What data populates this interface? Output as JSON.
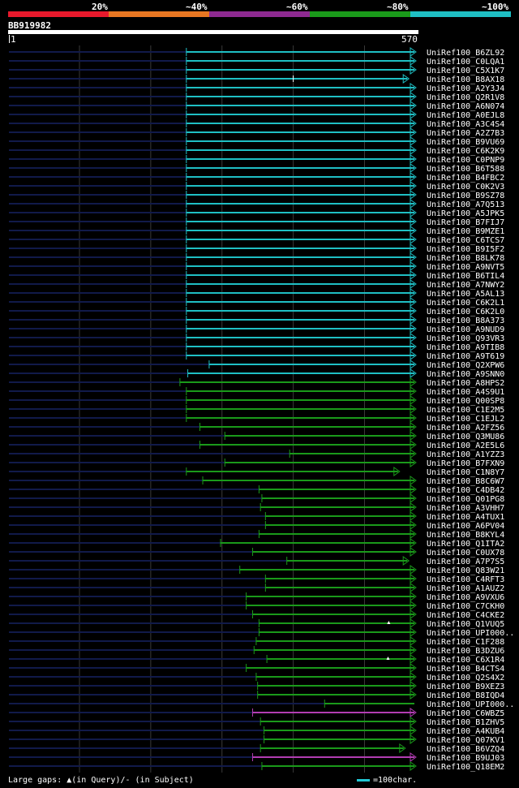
{
  "legend": {
    "colors": [
      "#e8192c",
      "#e87722",
      "#8e2a91",
      "#1a9a1a",
      "#1fbfc4"
    ],
    "labels": [
      "20%",
      "~40%",
      "~60%",
      "~80%",
      "~100%"
    ]
  },
  "query": {
    "id": "BB919982",
    "start": "1",
    "end": "570"
  },
  "hits": [
    {
      "label": "UniRef100_B6ZL92",
      "start": 250,
      "color": "#1fbfc4",
      "end": 570,
      "arrow": true
    },
    {
      "label": "UniRef100_C0LQA1",
      "start": 250,
      "color": "#1fbfc4",
      "end": 570,
      "arrow": true
    },
    {
      "label": "UniRef100_C5X1K7",
      "start": 250,
      "color": "#1fbfc4",
      "end": 570,
      "arrow": true
    },
    {
      "label": "UniRef100_B8AX18",
      "start": 250,
      "color": "#1fbfc4",
      "end": 560,
      "arrow": true,
      "gap": 400
    },
    {
      "label": "UniRef100_A2Y3J4",
      "start": 250,
      "color": "#1fbfc4",
      "end": 570,
      "arrow": true
    },
    {
      "label": "UniRef100_Q2R1V8",
      "start": 250,
      "color": "#1fbfc4",
      "end": 570,
      "arrow": true
    },
    {
      "label": "UniRef100_A6N074",
      "start": 250,
      "color": "#1fbfc4",
      "end": 570,
      "arrow": true
    },
    {
      "label": "UniRef100_A0EJL8",
      "start": 250,
      "color": "#1fbfc4",
      "end": 570,
      "arrow": true
    },
    {
      "label": "UniRef100_A3C4S4",
      "start": 250,
      "color": "#1fbfc4",
      "end": 570,
      "arrow": true
    },
    {
      "label": "UniRef100_A2Z7B3",
      "start": 250,
      "color": "#1fbfc4",
      "end": 570,
      "arrow": true
    },
    {
      "label": "UniRef100_B9VU69",
      "start": 250,
      "color": "#1fbfc4",
      "end": 570,
      "arrow": true
    },
    {
      "label": "UniRef100_C6K2K9",
      "start": 250,
      "color": "#1fbfc4",
      "end": 570,
      "arrow": true
    },
    {
      "label": "UniRef100_C0PNP9",
      "start": 250,
      "color": "#1fbfc4",
      "end": 570,
      "arrow": true
    },
    {
      "label": "UniRef100_B6T588",
      "start": 250,
      "color": "#1fbfc4",
      "end": 570,
      "arrow": true
    },
    {
      "label": "UniRef100_B4FBC2",
      "start": 250,
      "color": "#1fbfc4",
      "end": 570,
      "arrow": true
    },
    {
      "label": "UniRef100_C0K2V3",
      "start": 250,
      "color": "#1fbfc4",
      "end": 570,
      "arrow": true
    },
    {
      "label": "UniRef100_B9SZ78",
      "start": 250,
      "color": "#1fbfc4",
      "end": 570,
      "arrow": true
    },
    {
      "label": "UniRef100_A7Q513",
      "start": 250,
      "color": "#1fbfc4",
      "end": 570,
      "arrow": true
    },
    {
      "label": "UniRef100_A5JPK5",
      "start": 250,
      "color": "#1fbfc4",
      "end": 570,
      "arrow": true
    },
    {
      "label": "UniRef100_B7FIJ7",
      "start": 250,
      "color": "#1fbfc4",
      "end": 570,
      "arrow": true
    },
    {
      "label": "UniRef100_B9MZE1",
      "start": 250,
      "color": "#1fbfc4",
      "end": 570,
      "arrow": true
    },
    {
      "label": "UniRef100_C6TCS7",
      "start": 250,
      "color": "#1fbfc4",
      "end": 570,
      "arrow": true
    },
    {
      "label": "UniRef100_B9I5F2",
      "start": 250,
      "color": "#1fbfc4",
      "end": 570,
      "arrow": true
    },
    {
      "label": "UniRef100_B8LK78",
      "start": 250,
      "color": "#1fbfc4",
      "end": 570,
      "arrow": true
    },
    {
      "label": "UniRef100_A9NVT5",
      "start": 250,
      "color": "#1fbfc4",
      "end": 570,
      "arrow": true
    },
    {
      "label": "UniRef100_B6TIL4",
      "start": 250,
      "color": "#1fbfc4",
      "end": 570,
      "arrow": true
    },
    {
      "label": "UniRef100_A7NWY2",
      "start": 250,
      "color": "#1fbfc4",
      "end": 570,
      "arrow": true
    },
    {
      "label": "UniRef100_A5AL13",
      "start": 250,
      "color": "#1fbfc4",
      "end": 570,
      "arrow": true
    },
    {
      "label": "UniRef100_C6K2L1",
      "start": 250,
      "color": "#1fbfc4",
      "end": 570,
      "arrow": true
    },
    {
      "label": "UniRef100_C6K2L0",
      "start": 250,
      "color": "#1fbfc4",
      "end": 570,
      "arrow": true
    },
    {
      "label": "UniRef100_B8A373",
      "start": 250,
      "color": "#1fbfc4",
      "end": 570,
      "arrow": true
    },
    {
      "label": "UniRef100_A9NUD9",
      "start": 250,
      "color": "#1fbfc4",
      "end": 570,
      "arrow": true
    },
    {
      "label": "UniRef100_Q93VR3",
      "start": 250,
      "color": "#1fbfc4",
      "end": 570,
      "arrow": true
    },
    {
      "label": "UniRef100_A9TIB8",
      "start": 250,
      "color": "#1fbfc4",
      "end": 570,
      "arrow": true
    },
    {
      "label": "UniRef100_A9T619",
      "start": 250,
      "color": "#1fbfc4",
      "end": 570,
      "arrow": true
    },
    {
      "label": "UniRef100_Q2XPW6",
      "start": 282,
      "color": "#1fbfc4",
      "end": 570,
      "arrow": true
    },
    {
      "label": "UniRef100_A9SNN0",
      "start": 252,
      "color": "#1fbfc4",
      "end": 570,
      "arrow": true
    },
    {
      "label": "UniRef100_A8HPS2",
      "start": 241,
      "color": "#1a9a1a",
      "end": 570,
      "arrow": true
    },
    {
      "label": "UniRef100_A4S9U1",
      "start": 250,
      "color": "#1a9a1a",
      "end": 570,
      "arrow": true
    },
    {
      "label": "UniRef100_Q00SP8",
      "start": 250,
      "color": "#1a9a1a",
      "end": 570,
      "arrow": true
    },
    {
      "label": "UniRef100_C1E2M5",
      "start": 250,
      "color": "#1a9a1a",
      "end": 570,
      "arrow": true
    },
    {
      "label": "UniRef100_C1EJL2",
      "start": 250,
      "color": "#1a9a1a",
      "end": 570,
      "arrow": true
    },
    {
      "label": "UniRef100_A2FZ56",
      "start": 269,
      "color": "#1a9a1a",
      "end": 570,
      "arrow": true
    },
    {
      "label": "UniRef100_Q3MU86",
      "start": 304,
      "color": "#1a9a1a",
      "end": 570,
      "arrow": true
    },
    {
      "label": "UniRef100_A2E5L6",
      "start": 269,
      "color": "#1a9a1a",
      "end": 570,
      "arrow": true
    },
    {
      "label": "UniRef100_A1YZZ3",
      "start": 395,
      "color": "#1a9a1a",
      "end": 570,
      "arrow": true
    },
    {
      "label": "UniRef100_B7FXN9",
      "start": 304,
      "color": "#1a9a1a",
      "end": 570,
      "arrow": true
    },
    {
      "label": "UniRef100_C1N8Y7",
      "start": 250,
      "color": "#1a9a1a",
      "end": 547,
      "arrow": true
    },
    {
      "label": "UniRef100_B8C6W7",
      "start": 273,
      "color": "#1a9a1a",
      "end": 570,
      "arrow": true
    },
    {
      "label": "UniRef100_C4DB42",
      "start": 352,
      "color": "#1a9a1a",
      "end": 570,
      "arrow": true
    },
    {
      "label": "UniRef100_Q01PG8",
      "start": 356,
      "color": "#1a9a1a",
      "end": 570,
      "arrow": true
    },
    {
      "label": "UniRef100_A3VHH7",
      "start": 354,
      "color": "#1a9a1a",
      "end": 570,
      "arrow": true
    },
    {
      "label": "UniRef100_A4TUX1",
      "start": 361,
      "color": "#1a9a1a",
      "end": 570,
      "arrow": true
    },
    {
      "label": "UniRef100_A6PV04",
      "start": 361,
      "color": "#1a9a1a",
      "end": 570,
      "arrow": true
    },
    {
      "label": "UniRef100_B8KYL4",
      "start": 352,
      "color": "#1a9a1a",
      "end": 570,
      "arrow": true
    },
    {
      "label": "UniRef100_Q1ITA2",
      "start": 298,
      "color": "#1a9a1a",
      "end": 570,
      "arrow": true
    },
    {
      "label": "UniRef100_C0UX78",
      "start": 343,
      "color": "#1a9a1a",
      "end": 570,
      "arrow": true
    },
    {
      "label": "UniRef100_A7P7S5",
      "start": 391,
      "color": "#1a9a1a",
      "end": 560,
      "arrow": true
    },
    {
      "label": "UniRef100_Q83W21",
      "start": 325,
      "color": "#1a9a1a",
      "end": 570,
      "arrow": true
    },
    {
      "label": "UniRef100_C4RFT3",
      "start": 361,
      "color": "#1a9a1a",
      "end": 570,
      "arrow": true
    },
    {
      "label": "UniRef100_A1AUZ2",
      "start": 361,
      "color": "#1a9a1a",
      "end": 570,
      "arrow": true
    },
    {
      "label": "UniRef100_A9VXU6",
      "start": 334,
      "color": "#1a9a1a",
      "end": 570,
      "arrow": true
    },
    {
      "label": "UniRef100_C7CKH0",
      "start": 334,
      "color": "#1a9a1a",
      "end": 570,
      "arrow": true
    },
    {
      "label": "UniRef100_C4CKE2",
      "start": 343,
      "color": "#1a9a1a",
      "end": 570,
      "arrow": true
    },
    {
      "label": "UniRef100_Q1VUQ5",
      "start": 352,
      "color": "#1a9a1a",
      "end": 570,
      "arrow": true,
      "qgap": 534
    },
    {
      "label": "UniRef100_UPI000..",
      "start": 352,
      "color": "#1a9a1a",
      "end": 570,
      "arrow": true
    },
    {
      "label": "UniRef100_C1F288",
      "start": 348,
      "color": "#1a9a1a",
      "end": 570,
      "arrow": true
    },
    {
      "label": "UniRef100_B3DZU6",
      "start": 345,
      "color": "#1a9a1a",
      "end": 570,
      "arrow": true
    },
    {
      "label": "UniRef100_C6X1R4",
      "start": 363,
      "color": "#1a9a1a",
      "end": 570,
      "arrow": true,
      "qgap": 533
    },
    {
      "label": "UniRef100_B4CTS4",
      "start": 334,
      "color": "#1a9a1a",
      "end": 570,
      "arrow": true
    },
    {
      "label": "UniRef100_Q2S4X2",
      "start": 348,
      "color": "#1a9a1a",
      "end": 570,
      "arrow": true
    },
    {
      "label": "UniRef100_B9XEZ3",
      "start": 350,
      "color": "#1a9a1a",
      "end": 570,
      "arrow": true
    },
    {
      "label": "UniRef100_B8IQD4",
      "start": 350,
      "color": "#1a9a1a",
      "end": 570,
      "arrow": true
    },
    {
      "label": "UniRef100_UPI000..",
      "start": 444,
      "color": "#1a9a1a",
      "end": 570,
      "arrow": false
    },
    {
      "label": "UniRef100_C6WBZ5",
      "start": 343,
      "color": "#b23db3",
      "end": 570,
      "arrow": true
    },
    {
      "label": "UniRef100_B1ZHV5",
      "start": 354,
      "color": "#1a9a1a",
      "end": 570,
      "arrow": true
    },
    {
      "label": "UniRef100_A4KUB4",
      "start": 359,
      "color": "#1a9a1a",
      "end": 570,
      "arrow": true
    },
    {
      "label": "UniRef100_Q07KV1",
      "start": 359,
      "color": "#1a9a1a",
      "end": 570,
      "arrow": true
    },
    {
      "label": "UniRef100_B6VZQ4",
      "start": 354,
      "color": "#1a9a1a",
      "end": 555,
      "arrow": true
    },
    {
      "label": "UniRef100_B9UJ03",
      "start": 343,
      "color": "#b23db3",
      "end": 570,
      "arrow": true
    },
    {
      "label": "UniRef100_Q18EM2",
      "start": 356,
      "color": "#1a9a1a",
      "end": 570,
      "arrow": true
    }
  ],
  "footer": {
    "gaps_text": "Large gaps: ▲(in Query)/- (in Subject)",
    "scale_text": "=100char."
  }
}
